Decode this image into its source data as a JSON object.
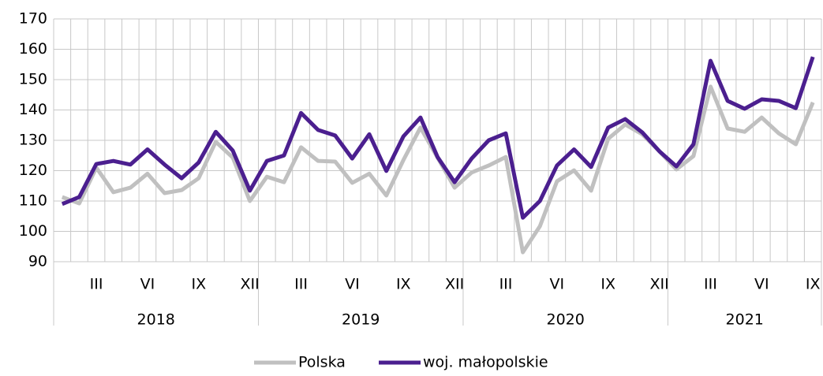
{
  "chart_data": {
    "type": "line",
    "categories": [
      null,
      null,
      "III",
      null,
      null,
      "VI",
      null,
      null,
      "IX",
      null,
      null,
      "XII",
      null,
      null,
      "III",
      null,
      null,
      "VI",
      null,
      null,
      "IX",
      null,
      null,
      "XII",
      null,
      null,
      "III",
      null,
      null,
      "VI",
      null,
      null,
      "IX",
      null,
      null,
      "XII",
      null,
      null,
      "III",
      null,
      null,
      "VI",
      null,
      null,
      "IX"
    ],
    "groups": [
      {
        "label": "2018",
        "size": 12
      },
      {
        "label": "2019",
        "size": 12
      },
      {
        "label": "2020",
        "size": 12
      },
      {
        "label": "2021",
        "size": 9
      }
    ],
    "series": [
      {
        "name": "Polska",
        "color": "#c0c0c0",
        "values": [
          111.3,
          109.2,
          121,
          112.9,
          114.4,
          119,
          112.6,
          113.6,
          117.5,
          129.5,
          124.3,
          110,
          118,
          116.2,
          127.7,
          123.2,
          123,
          116,
          119,
          111.8,
          123.5,
          134.2,
          124.3,
          114.4,
          119.4,
          121.7,
          124.5,
          93.1,
          101.7,
          116.5,
          120.1,
          113.4,
          130.5,
          135.2,
          132,
          126.4,
          120.4,
          124.8,
          147.7,
          133.9,
          132.8,
          137.5,
          132.3,
          128.7,
          142.5
        ]
      },
      {
        "name": "woj. małopolskie",
        "color": "#4b1f8f",
        "values": [
          109,
          111.3,
          122.2,
          123.2,
          122,
          127,
          122,
          117.5,
          122.7,
          132.8,
          126.6,
          113.4,
          123.2,
          125,
          139,
          133.4,
          131.6,
          124,
          132,
          119.9,
          131.3,
          137.5,
          124.5,
          116.2,
          124,
          130,
          132.3,
          104.5,
          110,
          121.7,
          127,
          121.2,
          134.2,
          137,
          132.6,
          126.4,
          121.4,
          128.7,
          156.2,
          143,
          140.4,
          143.5,
          143,
          140.6,
          157.5
        ]
      }
    ],
    "ylim": [
      90,
      170
    ],
    "yticks": [
      90,
      100,
      110,
      120,
      130,
      140,
      150,
      160,
      170
    ],
    "grid": true,
    "legend": "bottom"
  }
}
